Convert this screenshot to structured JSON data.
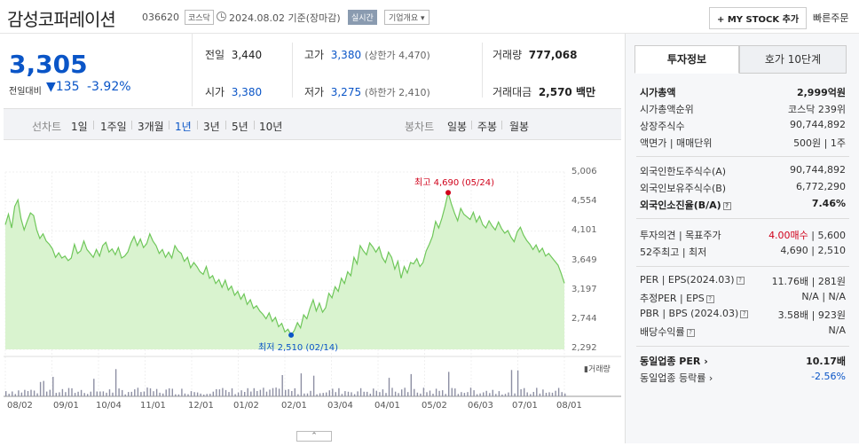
{
  "header": {
    "company_name": "감성코퍼레이션",
    "code": "036620",
    "market": "코스닥",
    "date": "2024.08.02 기준(장마감)",
    "realtime": "실시간",
    "overview": "기업개요 ▾",
    "mystock": "+ MY STOCK 추가",
    "quick_order": "빠른주문"
  },
  "price": {
    "current": "3,305",
    "change_label": "전일대비",
    "change": "▼135",
    "change_pct": "-3.92%",
    "color": "#0a55c7"
  },
  "summary": {
    "prev_label": "전일",
    "prev": "3,440",
    "high_label": "고가",
    "high": "3,380",
    "upper_limit": "(상한가 4,470)",
    "volume_label": "거래량",
    "volume": "777,068",
    "open_label": "시가",
    "open": "3,380",
    "low_label": "저가",
    "low": "3,275",
    "lower_limit": "(하한가 2,410)",
    "amount_label": "거래대금",
    "amount": "2,570 백만"
  },
  "period_bar": {
    "line_label": "선차트",
    "line_items": [
      "1일",
      "1주일",
      "3개월",
      "1년",
      "3년",
      "5년",
      "10년"
    ],
    "active": "1년",
    "candle_label": "봉차트",
    "candle_items": [
      "일봉",
      "주봉",
      "월봉"
    ]
  },
  "chart_data": {
    "type": "area",
    "y_ticks": [
      "5,006",
      "4,554",
      "4,101",
      "3,649",
      "3,197",
      "2,744",
      "2,292"
    ],
    "ylim": [
      2292,
      5006
    ],
    "x_ticks": [
      "08/02",
      "09/01",
      "10/04",
      "11/01",
      "12/01",
      "01/02",
      "02/01",
      "03/04",
      "04/01",
      "05/02",
      "06/03",
      "07/01",
      "08/01"
    ],
    "max_label": "최고 4,690 (05/24)",
    "min_label": "최저 2,510 (02/14)",
    "volume_label": "거래량",
    "line_color": "#6fc75a",
    "fill_color": "#d9f3cf",
    "series": [
      {
        "values": [
          4200,
          4360,
          4150,
          4480,
          4580,
          4290,
          4120,
          4260,
          4380,
          4340,
          4120,
          3990,
          4060,
          3950,
          3900,
          3830,
          3700,
          3770,
          3690,
          3720,
          3650,
          3690,
          3900,
          3760,
          3800,
          3950,
          3820,
          3760,
          3700,
          3820,
          3720,
          3880,
          3930,
          3780,
          3830,
          3740,
          3850,
          3690,
          3720,
          3780,
          3920,
          4020,
          3880,
          3980,
          3850,
          3910,
          4060,
          3950,
          3880,
          3760,
          3820,
          3700,
          3780,
          3690,
          3880,
          3800,
          3760,
          3640,
          3700,
          3540,
          3620,
          3560,
          3480,
          3440,
          3560,
          3380,
          3420,
          3300,
          3360,
          3240,
          3350,
          3200,
          3260,
          3120,
          3180,
          3060,
          3140,
          2980,
          3050,
          2920,
          2960,
          2880,
          2830,
          2760,
          2850,
          2720,
          2780,
          2640,
          2690,
          2560,
          2600,
          2510,
          2580,
          2700,
          2620,
          2820,
          2760,
          2920,
          3050,
          2880,
          3000,
          2860,
          2930,
          3150,
          3080,
          3250,
          3180,
          3380,
          3300,
          3480,
          3420,
          3700,
          3600,
          3880,
          3800,
          3740,
          3920,
          3860,
          3780,
          3860,
          3700,
          3620,
          3780,
          3700,
          3520,
          3640,
          3380,
          3560,
          3460,
          3620,
          3600,
          3680,
          3560,
          3620,
          3800,
          3900,
          4020,
          4250,
          4150,
          4300,
          4480,
          4690,
          4520,
          4380,
          4260,
          4450,
          4360,
          4320,
          4280,
          4390,
          4240,
          4330,
          4200,
          4150,
          4260,
          4180,
          4120,
          4240,
          4140,
          4070,
          4110,
          4010,
          3940,
          4090,
          4160,
          4040,
          3960,
          3900,
          3820,
          3890,
          3780,
          3840,
          3720,
          3760,
          3700,
          3640,
          3580,
          3450,
          3305
        ]
      }
    ]
  },
  "side": {
    "tab_active": "투자정보",
    "tab_other": "호가 10단계",
    "rows1": [
      {
        "label": "시가총액",
        "value": "2,999억원",
        "bold": true
      },
      {
        "label": "시가총액순위",
        "value": "코스닥 239위"
      },
      {
        "label": "상장주식수",
        "value": "90,744,892"
      },
      {
        "label": "액면가 | 매매단위",
        "value": "500원 | 1주"
      }
    ],
    "rows2": [
      {
        "label": "외국인한도주식수(A)",
        "value": "90,744,892"
      },
      {
        "label": "외국인보유주식수(B)",
        "value": "6,772,290"
      },
      {
        "label": "외국인소진율(B/A)",
        "value": "7.46%",
        "bold": true
      }
    ],
    "opinion_label": "투자의견 | 목표주가",
    "opinion_value": "4.00매수",
    "target_value": "| 5,600",
    "week52_label": "52주최고 | 최저",
    "week52_value": "4,690 | 2,510",
    "rows4": [
      {
        "label": "PER | EPS(2024.03)",
        "value": "11.76배 | 281원"
      },
      {
        "label": "추정PER | EPS",
        "value": "N/A | N/A"
      },
      {
        "label": "PBR | BPS (2024.03)",
        "value": "3.58배 | 923원"
      },
      {
        "label": "배당수익률",
        "value": "N/A"
      }
    ],
    "industry_per_label": "동일업종 PER",
    "industry_per_value": "10.17배",
    "industry_rate_label": "동일업종 등락률",
    "industry_rate_value": "-2.56%"
  }
}
